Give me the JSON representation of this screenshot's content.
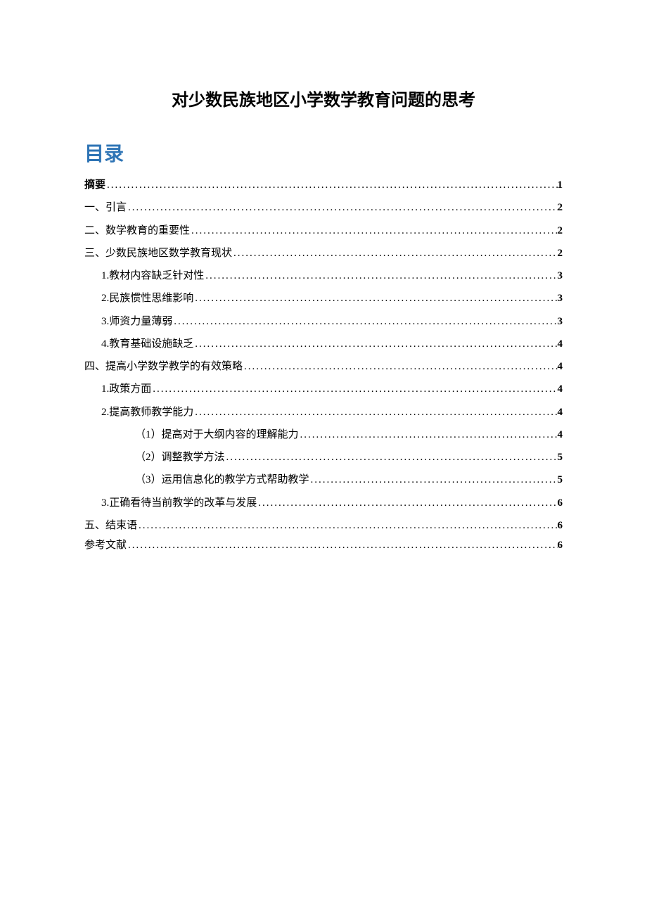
{
  "document": {
    "title": "对少数民族地区小学数学教育问题的思考",
    "toc_heading": "目录",
    "title_color": "#000000",
    "toc_heading_color": "#2e74b5",
    "text_color": "#000000",
    "background_color": "#ffffff",
    "title_fontsize": 24,
    "toc_heading_fontsize": 28,
    "entry_fontsize": 15
  },
  "toc": [
    {
      "label": "摘要",
      "page": "1",
      "level": 0,
      "bold": true
    },
    {
      "label": "一、引言",
      "page": "2",
      "level": 0,
      "bold": false
    },
    {
      "label": "二、数学教育的重要性",
      "page": "2",
      "level": 0,
      "bold": false
    },
    {
      "label": "三、少数民族地区数学教育现状",
      "page": "2",
      "level": 0,
      "bold": false
    },
    {
      "label": "1.教材内容缺乏针对性",
      "page": "3",
      "level": 1,
      "bold": false
    },
    {
      "label": "2.民族惯性思维影响",
      "page": "3",
      "level": 1,
      "bold": false
    },
    {
      "label": "3.师资力量薄弱",
      "page": "3",
      "level": 1,
      "bold": false
    },
    {
      "label": "4.教育基础设施缺乏",
      "page": "4",
      "level": 1,
      "bold": false
    },
    {
      "label": "四、提高小学数学教学的有效策略",
      "page": "4",
      "level": 0,
      "bold": false
    },
    {
      "label": "1.政策方面",
      "page": "4",
      "level": 1,
      "bold": false
    },
    {
      "label": "2.提高教师教学能力",
      "page": "4",
      "level": 1,
      "bold": false
    },
    {
      "label": "（1）提高对于大纲内容的理解能力",
      "page": "4",
      "level": 2,
      "bold": false
    },
    {
      "label": "（2）调整教学方法",
      "page": "5",
      "level": 2,
      "bold": false
    },
    {
      "label": "（3）运用信息化的教学方式帮助教学",
      "page": "5",
      "level": 2,
      "bold": false
    },
    {
      "label": "3.正确看待当前教学的改革与发展",
      "page": "6",
      "level": 1,
      "bold": false
    },
    {
      "label": "五、结束语",
      "page": "6",
      "level": 0,
      "bold": false
    },
    {
      "label": "参考文献",
      "page": "6",
      "level": 0,
      "bold": false,
      "tight": true
    }
  ]
}
